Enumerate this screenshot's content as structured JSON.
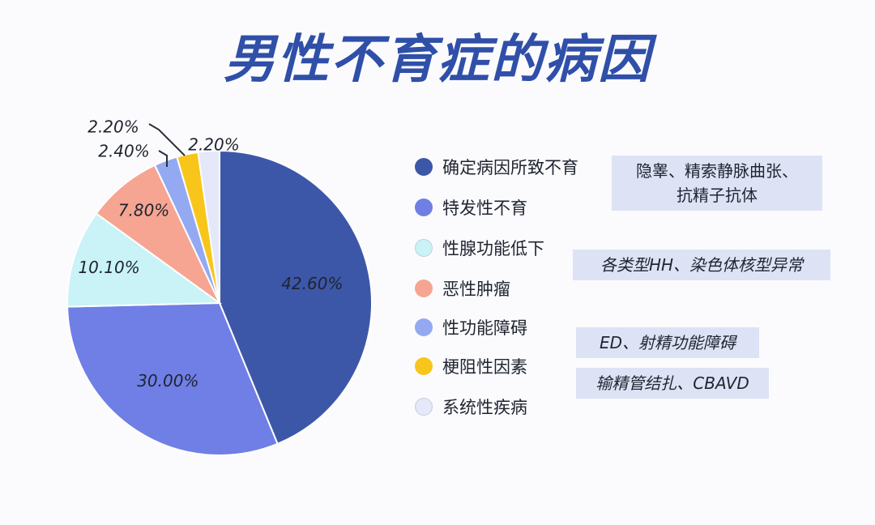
{
  "title": "男性不育症的病因",
  "chart_data": {
    "type": "pie",
    "title": "男性不育症的病因",
    "slices": [
      {
        "label": "确定病因所致不育",
        "value": 42.6,
        "display": "42.60%",
        "color": "#3d57a8"
      },
      {
        "label": "特发性不育",
        "value": 30.0,
        "display": "30.00%",
        "color": "#6f7fe6"
      },
      {
        "label": "性腺功能低下",
        "value": 10.1,
        "display": "10.10%",
        "color": "#c9f3f6"
      },
      {
        "label": "恶性肿瘤",
        "value": 7.8,
        "display": "7.80%",
        "color": "#f6a592"
      },
      {
        "label": "性功能障碍",
        "value": 2.4,
        "display": "2.40%",
        "color": "#93a9f2"
      },
      {
        "label": "梗阻性因素",
        "value": 2.2,
        "display": "2.20%",
        "color": "#f8c51b"
      },
      {
        "label": "系统性疾病",
        "value": 2.2,
        "display": "2.20%",
        "color": "#e4e8f8"
      }
    ],
    "legend_position": "right"
  },
  "notes": [
    {
      "for": "确定病因所致不育",
      "lines": [
        "隐睾、精索静脉曲张、",
        "抗精子抗体"
      ]
    },
    {
      "for": "性腺功能低下",
      "lines": [
        "各类型HH、染色体核型异常"
      ]
    },
    {
      "for": "性功能障碍",
      "lines": [
        "ED、射精功能障碍"
      ]
    },
    {
      "for": "梗阻性因素",
      "lines": [
        "输精管结扎、CBAVD"
      ]
    }
  ]
}
